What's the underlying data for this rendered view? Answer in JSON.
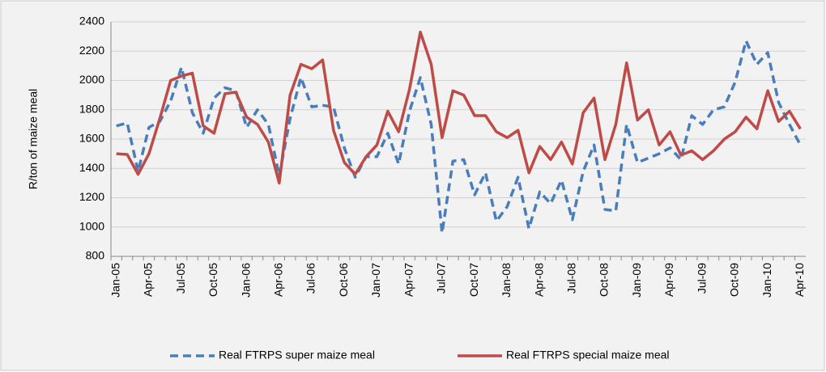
{
  "chart_data": {
    "type": "line",
    "y_label": "R/ton of maize meal",
    "categories": [
      "Jan-05",
      null,
      null,
      "Apr-05",
      null,
      null,
      "Jul-05",
      null,
      null,
      "Oct-05",
      null,
      null,
      "Jan-06",
      null,
      null,
      "Apr-06",
      null,
      null,
      "Jul-06",
      null,
      null,
      "Oct-06",
      null,
      null,
      "Jan-07",
      null,
      null,
      "Apr-07",
      null,
      null,
      "Jul-07",
      null,
      null,
      "Oct-07",
      null,
      null,
      "Jan-08",
      null,
      null,
      "Apr-08",
      null,
      null,
      "Jul-08",
      null,
      null,
      "Oct-08",
      null,
      null,
      "Jan-09",
      null,
      null,
      "Apr-09",
      null,
      null,
      "Jul-09",
      null,
      null,
      "Oct-09",
      null,
      null,
      "Jan-10",
      null,
      null,
      "Apr-10"
    ],
    "series": [
      {
        "name": "Real FTRPS super maize meal",
        "color": "#4a7ebb",
        "dashed": true,
        "values": [
          1690,
          1710,
          1380,
          1680,
          1720,
          1860,
          2090,
          1780,
          1640,
          1880,
          1950,
          1930,
          1680,
          1800,
          1700,
          1350,
          1740,
          2020,
          1820,
          1830,
          1820,
          1540,
          1340,
          1480,
          1480,
          1640,
          1430,
          1790,
          2020,
          1700,
          960,
          1450,
          1460,
          1220,
          1370,
          1040,
          1140,
          1340,
          990,
          1240,
          1160,
          1320,
          1050,
          1380,
          1560,
          1120,
          1110,
          1700,
          1440,
          1470,
          1500,
          1540,
          1460,
          1760,
          1700,
          1800,
          1820,
          1990,
          2270,
          2110,
          2190,
          1850,
          1700,
          1560
        ]
      },
      {
        "name": "Real FTRPS special maize meal",
        "color": "#be4b48",
        "dashed": false,
        "values": [
          1500,
          1495,
          1360,
          1500,
          1740,
          2000,
          2030,
          2050,
          1690,
          1640,
          1910,
          1920,
          1750,
          1700,
          1580,
          1300,
          1900,
          2110,
          2080,
          2140,
          1660,
          1440,
          1360,
          1480,
          1560,
          1790,
          1650,
          1940,
          2330,
          2110,
          1610,
          1930,
          1900,
          1760,
          1760,
          1650,
          1610,
          1660,
          1370,
          1550,
          1460,
          1580,
          1430,
          1780,
          1880,
          1460,
          1700,
          2120,
          1730,
          1800,
          1560,
          1650,
          1490,
          1520,
          1460,
          1520,
          1600,
          1650,
          1750,
          1670,
          1930,
          1720,
          1790,
          1670
        ]
      }
    ],
    "ylim": [
      800,
      2400
    ],
    "yticks": [
      800,
      1000,
      1200,
      1400,
      1600,
      1800,
      2000,
      2200,
      2400
    ],
    "grid": true,
    "legend": "bottom"
  }
}
